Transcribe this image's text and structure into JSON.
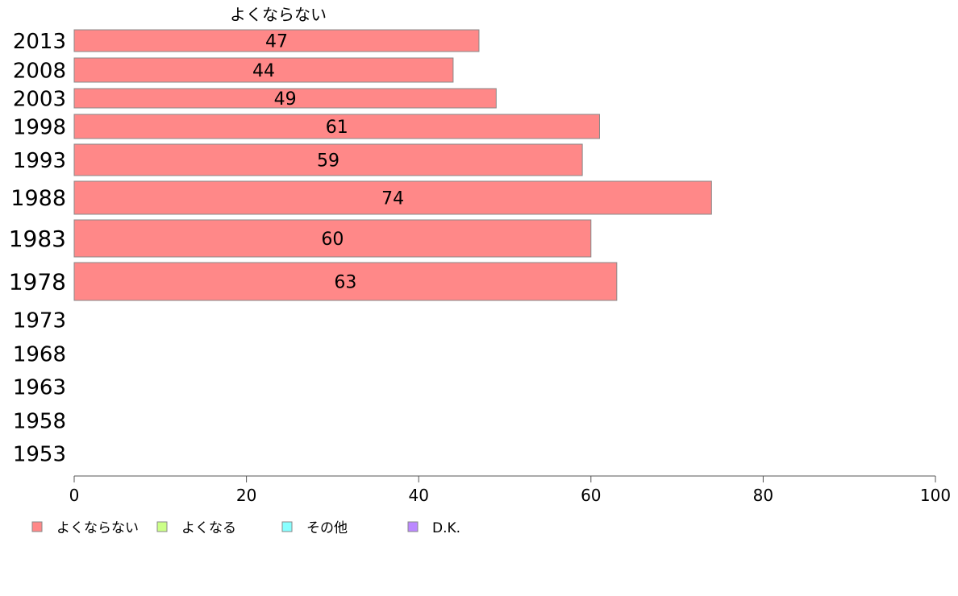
{
  "chart_data": {
    "type": "bar",
    "orientation": "horizontal",
    "categories": [
      "2013",
      "2008",
      "2003",
      "1998",
      "1993",
      "1988",
      "1983",
      "1978",
      "1973",
      "1968",
      "1963",
      "1958",
      "1953"
    ],
    "series": [
      {
        "name": "よくならない",
        "color": "#ff8888",
        "values": [
          47,
          44,
          49,
          61,
          59,
          74,
          60,
          63,
          null,
          null,
          null,
          null,
          null
        ]
      },
      {
        "name": "よくなる",
        "color": "#ccff88",
        "values": [
          null,
          null,
          null,
          null,
          null,
          null,
          null,
          null,
          null,
          null,
          null,
          null,
          null
        ]
      },
      {
        "name": "その他",
        "color": "#88ffff",
        "values": [
          null,
          null,
          null,
          null,
          null,
          null,
          null,
          null,
          null,
          null,
          null,
          null,
          null
        ]
      },
      {
        "name": "D.K.",
        "color": "#bb88ff",
        "values": [
          null,
          null,
          null,
          null,
          null,
          null,
          null,
          null,
          null,
          null,
          null,
          null,
          null
        ]
      }
    ],
    "column_header": "よくならない",
    "xlim": [
      0,
      100
    ],
    "xticks": [
      0,
      20,
      40,
      60,
      80,
      100
    ],
    "grid": false,
    "legend_position": "bottom-left",
    "bar_edge_color": "#888888"
  }
}
